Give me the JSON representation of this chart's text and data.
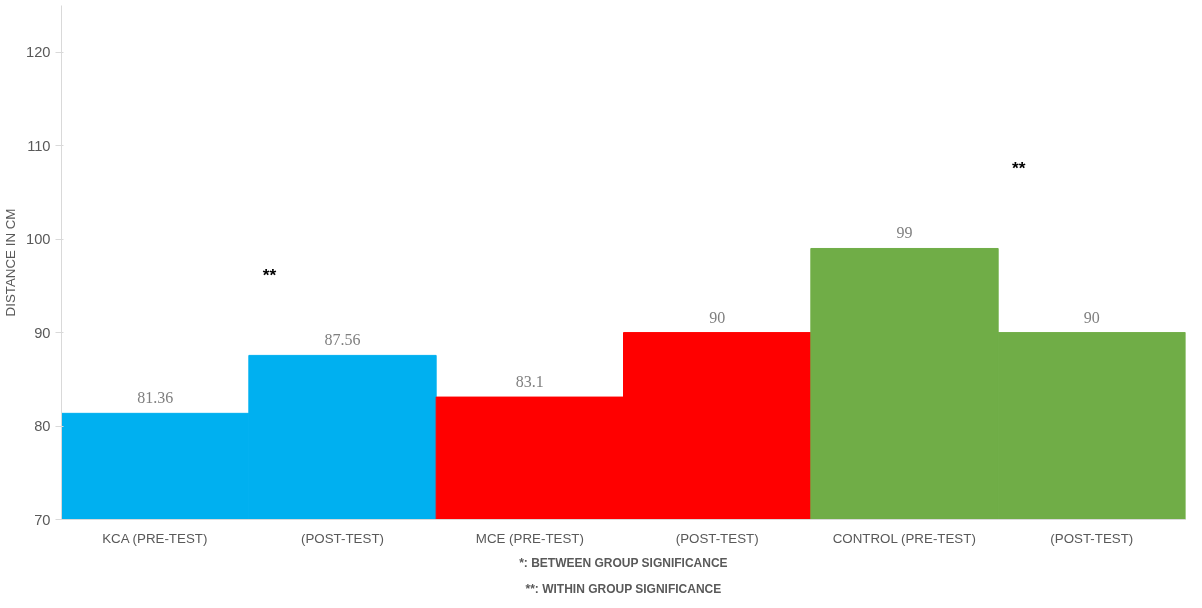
{
  "chart_data": {
    "type": "bar",
    "ylabel": "DISTANCE IN CM",
    "categories": [
      "KCA (PRE-TEST)",
      "(POST-TEST)",
      "MCE (PRE-TEST)",
      "(POST-TEST)",
      "CONTROL (PRE-TEST)",
      "(POST-TEST)"
    ],
    "values": [
      81.36,
      87.56,
      83.1,
      90,
      99,
      90
    ],
    "colors": [
      "#00b0f0",
      "#00b0f0",
      "#ff0000",
      "#ff0000",
      "#70ad47",
      "#70ad47"
    ],
    "data_labels": true,
    "ylim": [
      70,
      125
    ],
    "yticks": [
      70,
      80,
      90,
      100,
      110,
      120
    ],
    "grid": false,
    "annotations": [
      "**",
      "**",
      "*: BETWEEN GROUP SIGNIFICANCE",
      "**: WITHIN GROUP SIGNIFICANCE"
    ]
  }
}
